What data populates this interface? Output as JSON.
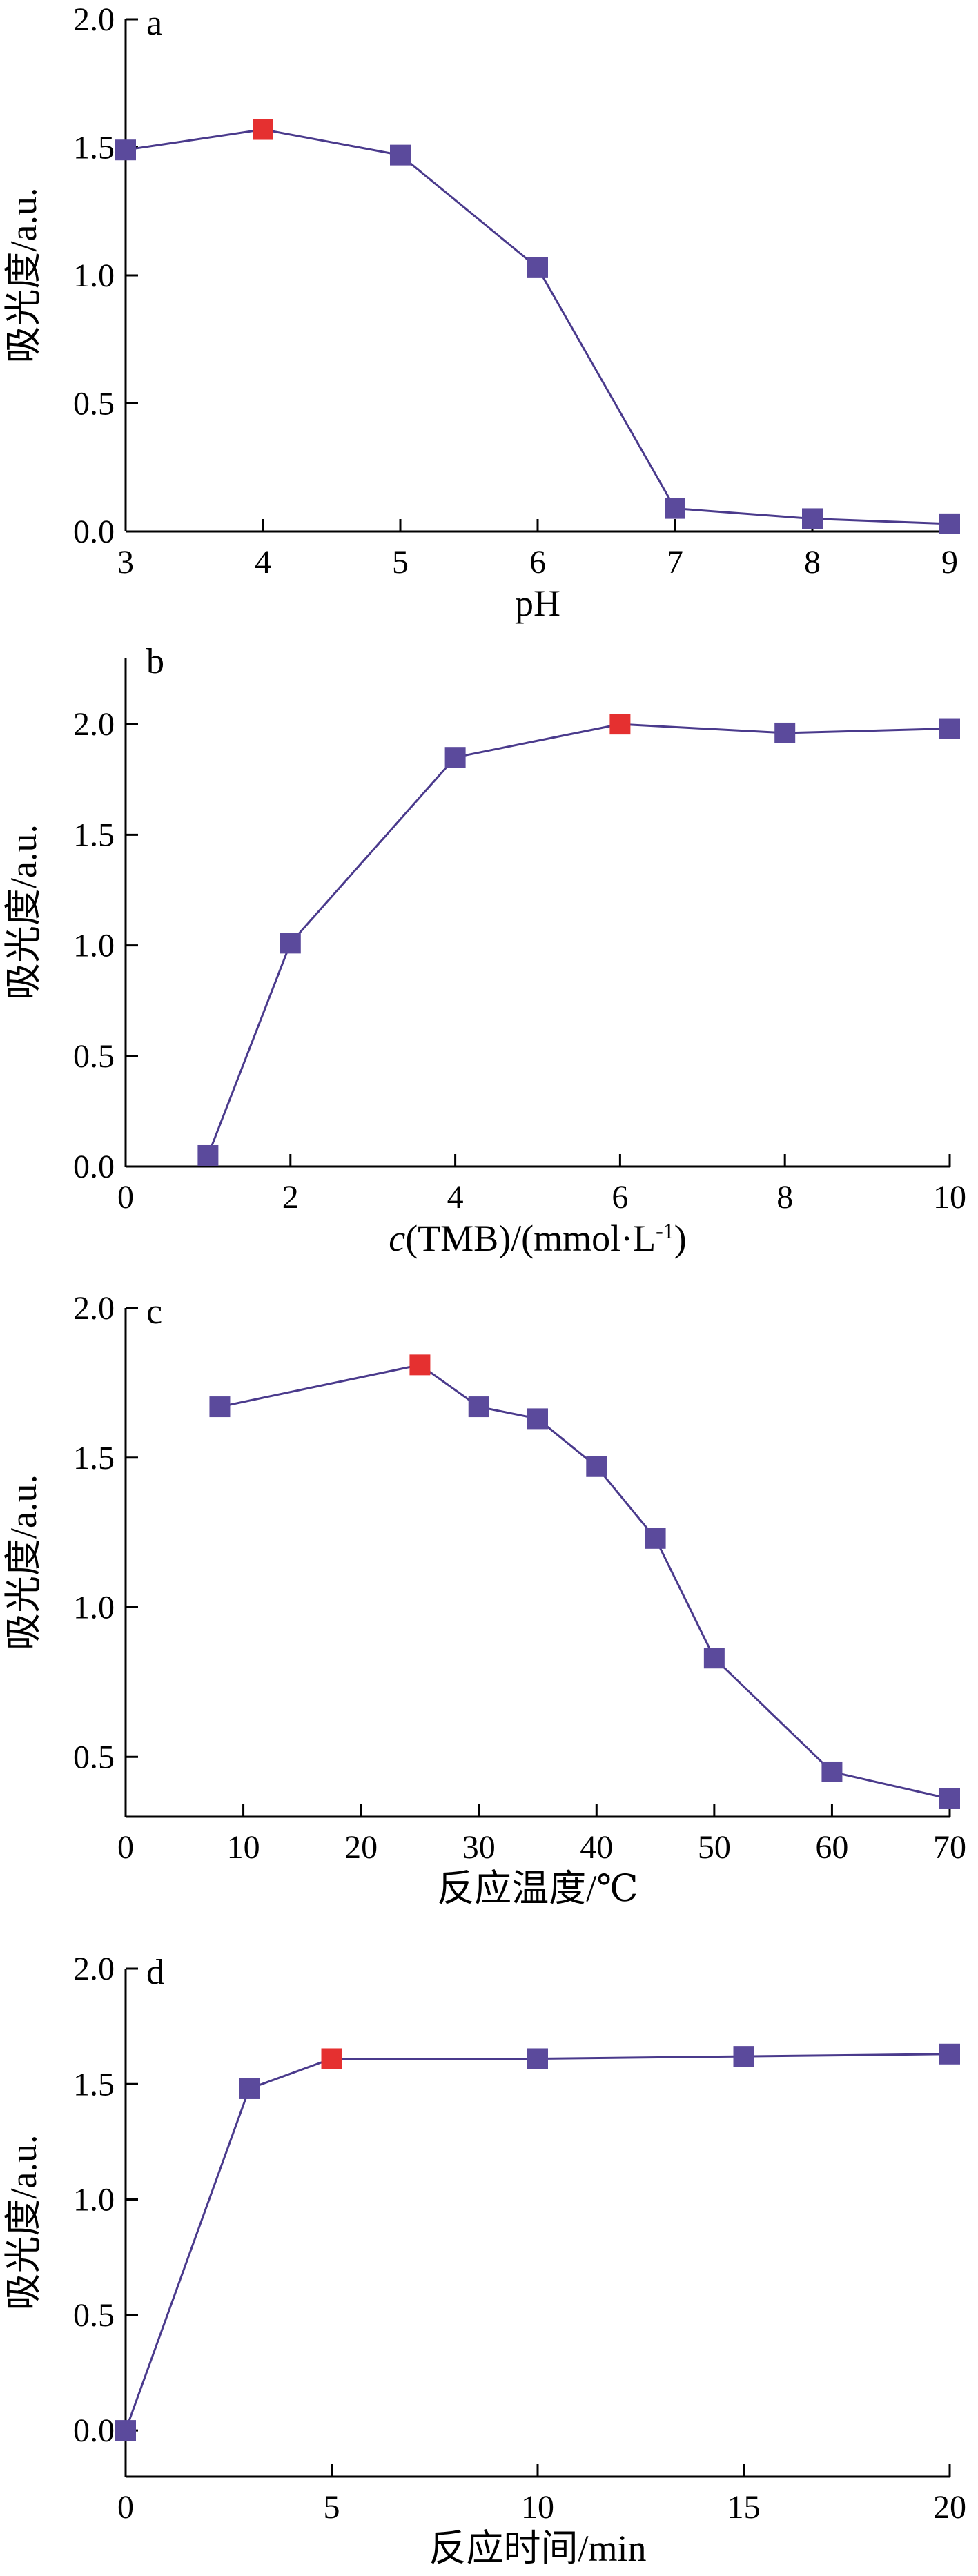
{
  "colors": {
    "line": "#4a3a8c",
    "marker": "#5b4a9c",
    "highlight": "#e53030",
    "axis": "#000000"
  },
  "chart_data": [
    {
      "type": "line",
      "panel_label": "a",
      "xlabel": "pH",
      "ylabel": "吸光度/a.u.",
      "xlim": [
        3,
        9
      ],
      "ylim": [
        0.0,
        2.0
      ],
      "xticks": [
        3,
        4,
        5,
        6,
        7,
        8,
        9
      ],
      "yticks": [
        0.0,
        0.5,
        1.0,
        1.5,
        2.0
      ],
      "ytick_labels": [
        "0.0",
        "0.5",
        "1.0",
        "1.5",
        "2.0"
      ],
      "highlight_x": 4,
      "x": [
        3,
        4,
        5,
        6,
        7,
        8,
        9
      ],
      "y": [
        1.49,
        1.57,
        1.47,
        1.03,
        0.09,
        0.05,
        0.03
      ]
    },
    {
      "type": "line",
      "panel_label": "b",
      "xlabel": "(TMB)/(mmol·L",
      "xlabel_italic_prefix": "c",
      "xlabel_superscript": "-1",
      "xlabel_suffix": ")",
      "ylabel": "吸光度/a.u.",
      "xlim": [
        0,
        10
      ],
      "ylim": [
        0.0,
        2.3
      ],
      "xticks": [
        0,
        2,
        4,
        6,
        8,
        10
      ],
      "yticks": [
        0.0,
        0.5,
        1.0,
        1.5,
        2.0
      ],
      "ytick_labels": [
        "0.0",
        "0.5",
        "1.0",
        "1.5",
        "2.0"
      ],
      "highlight_x": 6,
      "x": [
        1,
        2,
        4,
        6,
        8,
        10
      ],
      "y": [
        0.05,
        1.01,
        1.85,
        2.0,
        1.96,
        1.98
      ]
    },
    {
      "type": "line",
      "panel_label": "c",
      "xlabel": "反应温度/℃",
      "ylabel": "吸光度/a.u.",
      "xlim": [
        0,
        70
      ],
      "ylim": [
        0.3,
        2.0
      ],
      "xticks": [
        0,
        10,
        20,
        30,
        40,
        50,
        60,
        70
      ],
      "yticks": [
        0.5,
        1.0,
        1.5,
        2.0
      ],
      "ytick_labels": [
        "0.5",
        "1.0",
        "1.5",
        "2.0"
      ],
      "highlight_x": 25,
      "x": [
        8,
        25,
        30,
        35,
        40,
        45,
        50,
        60,
        70
      ],
      "y": [
        1.67,
        1.81,
        1.67,
        1.63,
        1.47,
        1.23,
        0.83,
        0.45,
        0.36
      ]
    },
    {
      "type": "line",
      "panel_label": "d",
      "xlabel": "反应时间/min",
      "ylabel": "吸光度/a.u.",
      "xlim": [
        0,
        20
      ],
      "ylim": [
        -0.2,
        2.0
      ],
      "xticks": [
        0,
        5,
        10,
        15,
        20
      ],
      "yticks": [
        0.0,
        0.5,
        1.0,
        1.5,
        2.0
      ],
      "ytick_labels": [
        "0.0",
        "0.5",
        "1.0",
        "1.5",
        "2.0"
      ],
      "highlight_x": 5,
      "x": [
        0,
        3,
        5,
        10,
        15,
        20
      ],
      "y": [
        0.0,
        1.48,
        1.61,
        1.61,
        1.62,
        1.63
      ]
    }
  ]
}
